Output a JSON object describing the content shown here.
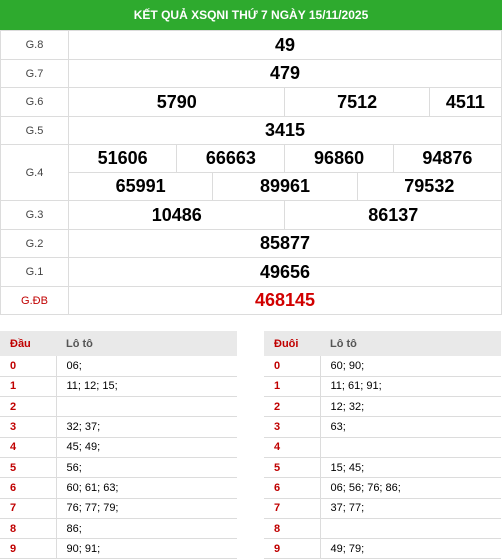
{
  "title": "KẾT QUẢ XSQNI THỨ 7 NGÀY 15/11/2025",
  "prizes": [
    {
      "label": "G.8",
      "values": [
        "49"
      ]
    },
    {
      "label": "G.7",
      "values": [
        "479"
      ]
    },
    {
      "label": "G.6",
      "values": [
        "5790",
        "7512",
        "4511"
      ]
    },
    {
      "label": "G.5",
      "values": [
        "3415"
      ]
    },
    {
      "label": "G.4",
      "values": [
        "51606",
        "66663",
        "96860",
        "94876",
        "65991",
        "89961",
        "79532"
      ]
    },
    {
      "label": "G.3",
      "values": [
        "10486",
        "86137"
      ]
    },
    {
      "label": "G.2",
      "values": [
        "85877"
      ]
    },
    {
      "label": "G.1",
      "values": [
        "49656"
      ]
    },
    {
      "label": "G.ĐB",
      "values": [
        "468145"
      ]
    }
  ],
  "dau": {
    "head_key": "Đầu",
    "head_val": "Lô tô",
    "rows": [
      {
        "k": "0",
        "v": "06;"
      },
      {
        "k": "1",
        "v": "11; 12; 15;"
      },
      {
        "k": "2",
        "v": ""
      },
      {
        "k": "3",
        "v": "32; 37;"
      },
      {
        "k": "4",
        "v": "45; 49;"
      },
      {
        "k": "5",
        "v": "56;"
      },
      {
        "k": "6",
        "v": "60; 61; 63;"
      },
      {
        "k": "7",
        "v": "76; 77; 79;"
      },
      {
        "k": "8",
        "v": "86;"
      },
      {
        "k": "9",
        "v": "90; 91;"
      }
    ]
  },
  "duoi": {
    "head_key": "Đuôi",
    "head_val": "Lô tô",
    "rows": [
      {
        "k": "0",
        "v": "60; 90;"
      },
      {
        "k": "1",
        "v": "11; 61; 91;"
      },
      {
        "k": "2",
        "v": "12; 32;"
      },
      {
        "k": "3",
        "v": "63;"
      },
      {
        "k": "4",
        "v": ""
      },
      {
        "k": "5",
        "v": "15; 45;"
      },
      {
        "k": "6",
        "v": "06; 56; 76; 86;"
      },
      {
        "k": "7",
        "v": "37; 77;"
      },
      {
        "k": "8",
        "v": ""
      },
      {
        "k": "9",
        "v": "49; 79;"
      }
    ]
  }
}
